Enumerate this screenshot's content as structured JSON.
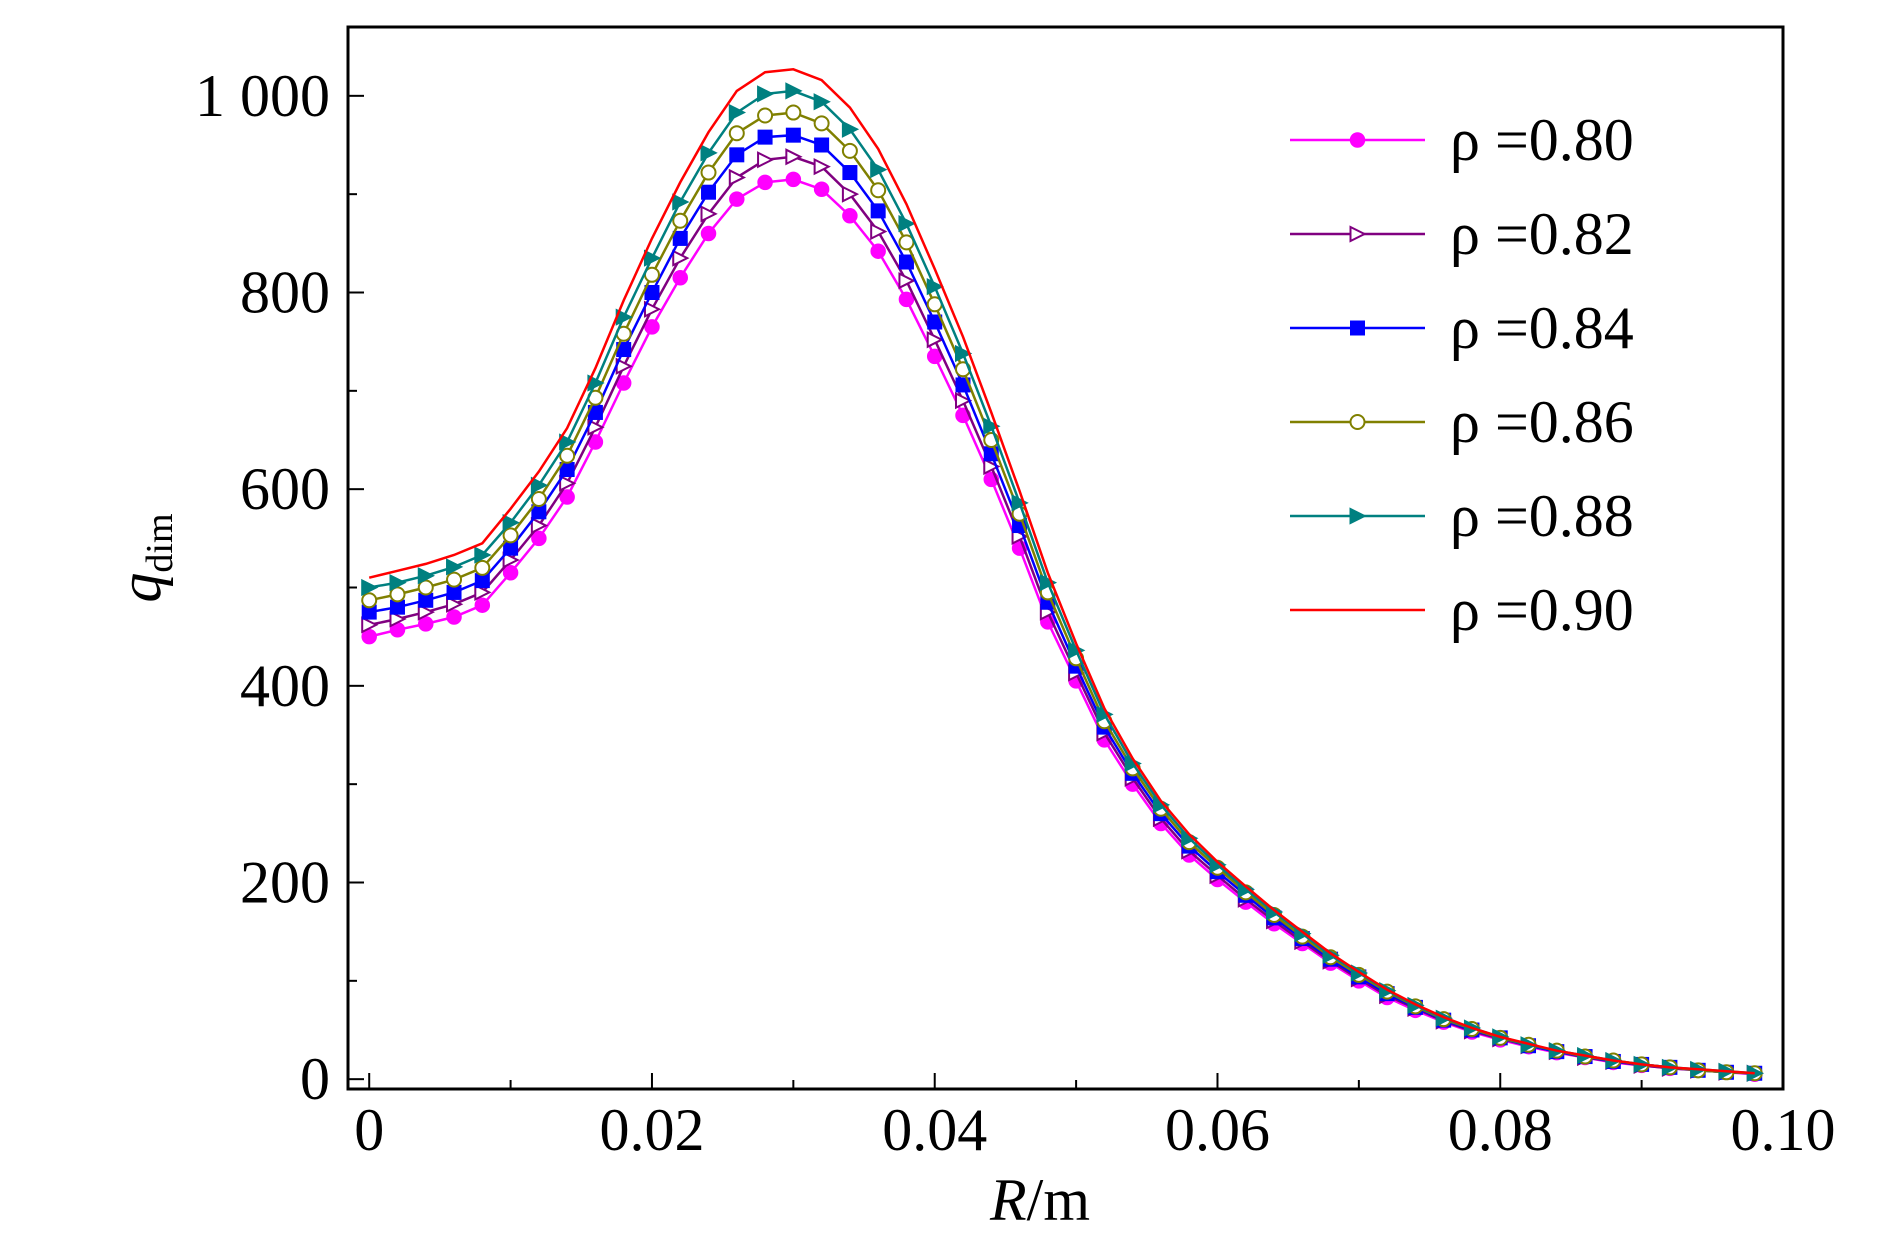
{
  "chart_data": {
    "type": "line",
    "title": "",
    "xlabel": "R/m",
    "ylabel": "q_dim",
    "xlim": [
      -0.0015,
      0.1
    ],
    "ylim": [
      -10,
      1070
    ],
    "xticks": [
      0,
      0.02,
      0.04,
      0.06,
      0.08,
      0.1
    ],
    "xtick_labels": [
      "0",
      "0.02",
      "0.04",
      "0.06",
      "0.08",
      "0.10"
    ],
    "yticks": [
      0,
      200,
      400,
      600,
      800,
      1000
    ],
    "ytick_labels": [
      "0",
      "200",
      "400",
      "600",
      "800",
      "1 000"
    ],
    "grid": false,
    "legend_position": "top-right",
    "x": [
      0,
      0.002,
      0.004,
      0.006,
      0.008,
      0.01,
      0.012,
      0.014,
      0.016,
      0.018,
      0.02,
      0.022,
      0.024,
      0.026,
      0.028,
      0.03,
      0.032,
      0.034,
      0.036,
      0.038,
      0.04,
      0.042,
      0.044,
      0.046,
      0.048,
      0.05,
      0.052,
      0.054,
      0.056,
      0.058,
      0.06,
      0.062,
      0.064,
      0.066,
      0.068,
      0.07,
      0.072,
      0.074,
      0.076,
      0.078,
      0.08,
      0.082,
      0.084,
      0.086,
      0.088,
      0.09,
      0.092,
      0.094,
      0.096,
      0.098
    ],
    "series": [
      {
        "name": "ρ =0.80",
        "color": "#ff00ff",
        "marker": "circle-filled",
        "values": [
          450,
          457,
          463,
          470,
          482,
          515,
          550,
          592,
          648,
          708,
          765,
          815,
          860,
          895,
          912,
          915,
          905,
          878,
          842,
          793,
          735,
          675,
          610,
          540,
          465,
          405,
          345,
          300,
          260,
          228,
          203,
          180,
          158,
          138,
          118,
          100,
          83,
          70,
          58,
          48,
          40,
          33,
          27,
          22,
          17,
          14,
          11,
          9,
          7,
          5
        ]
      },
      {
        "name": "ρ =0.82",
        "color": "#800080",
        "marker": "triangle-right-open",
        "values": [
          462,
          468,
          475,
          483,
          495,
          528,
          563,
          606,
          663,
          725,
          783,
          835,
          880,
          917,
          935,
          938,
          928,
          900,
          862,
          812,
          752,
          690,
          623,
          552,
          475,
          413,
          352,
          306,
          265,
          232,
          207,
          183,
          161,
          140,
          120,
          102,
          85,
          72,
          59,
          49,
          41,
          34,
          28,
          22,
          18,
          14,
          11,
          9,
          7,
          6
        ]
      },
      {
        "name": "ρ =0.84",
        "color": "#0000ff",
        "marker": "square-filled",
        "values": [
          475,
          480,
          487,
          495,
          507,
          540,
          577,
          620,
          678,
          742,
          800,
          855,
          902,
          940,
          958,
          960,
          950,
          922,
          883,
          831,
          770,
          706,
          636,
          563,
          485,
          420,
          358,
          311,
          270,
          237,
          211,
          187,
          164,
          143,
          122,
          104,
          87,
          73,
          60,
          50,
          42,
          34,
          28,
          23,
          18,
          15,
          12,
          9,
          7,
          6
        ]
      },
      {
        "name": "ρ =0.86",
        "color": "#808000",
        "marker": "circle-open",
        "values": [
          487,
          493,
          500,
          508,
          520,
          553,
          590,
          634,
          693,
          758,
          818,
          873,
          922,
          962,
          980,
          983,
          972,
          944,
          904,
          851,
          788,
          722,
          650,
          575,
          495,
          428,
          364,
          316,
          275,
          241,
          215,
          190,
          167,
          145,
          124,
          106,
          89,
          74,
          61,
          51,
          42,
          35,
          29,
          23,
          19,
          15,
          12,
          9,
          7,
          6
        ]
      },
      {
        "name": "ρ =0.88",
        "color": "#008080",
        "marker": "triangle-right-filled",
        "values": [
          500,
          505,
          512,
          521,
          533,
          566,
          604,
          648,
          708,
          775,
          835,
          892,
          942,
          983,
          1002,
          1005,
          994,
          966,
          925,
          870,
          806,
          738,
          664,
          586,
          505,
          436,
          371,
          321,
          279,
          245,
          218,
          193,
          170,
          148,
          126,
          108,
          90,
          75,
          62,
          52,
          43,
          35,
          29,
          24,
          19,
          15,
          12,
          10,
          8,
          6
        ]
      },
      {
        "name": "ρ =0.90",
        "color": "#ff0000",
        "marker": "none",
        "values": [
          510,
          517,
          524,
          533,
          545,
          580,
          618,
          662,
          723,
          792,
          855,
          912,
          963,
          1005,
          1024,
          1027,
          1016,
          988,
          946,
          890,
          824,
          755,
          678,
          598,
          515,
          443,
          377,
          326,
          283,
          249,
          221,
          196,
          172,
          150,
          128,
          109,
          91,
          76,
          63,
          52,
          43,
          36,
          29,
          24,
          19,
          15,
          12,
          10,
          8,
          6
        ]
      }
    ]
  }
}
